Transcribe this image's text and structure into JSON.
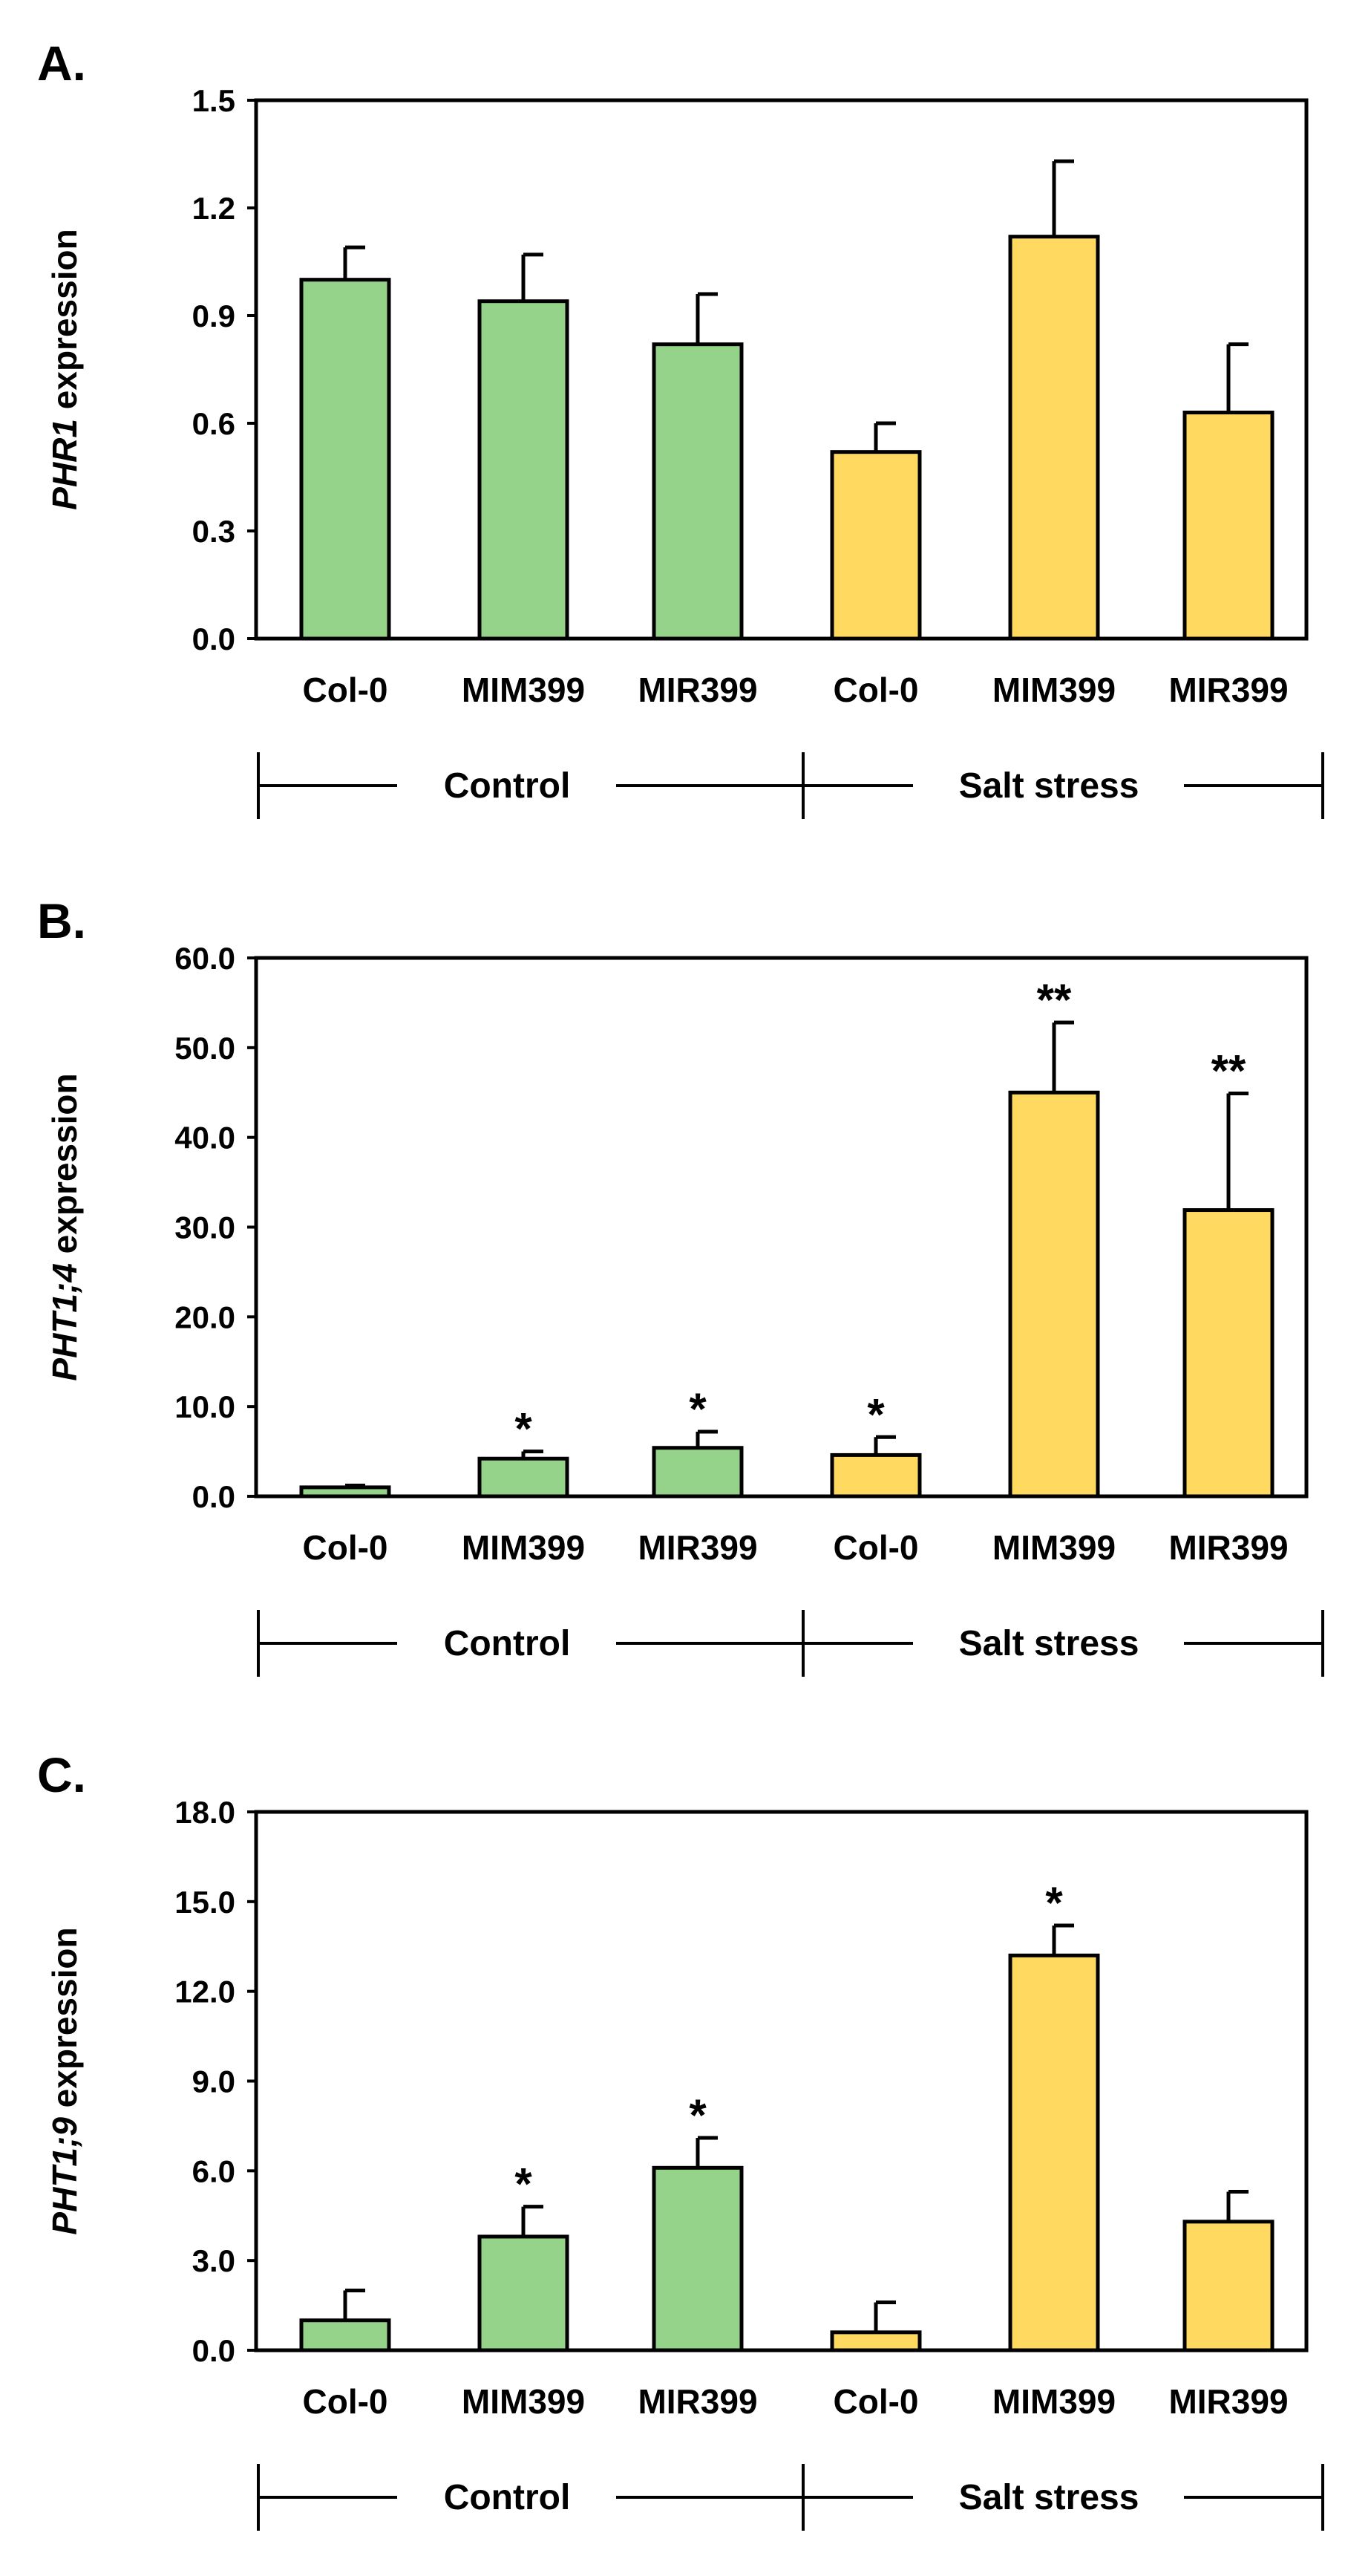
{
  "colors": {
    "control": "#94D389",
    "salt": "#FFD960",
    "ink": "#000000"
  },
  "chart_data": [
    {
      "panel": "A.",
      "type": "bar",
      "ylabel_italic": "PHR1",
      "ylabel_rest": " expression",
      "ylim": [
        0,
        1.5
      ],
      "yticks": [
        "0.0",
        "0.3",
        "0.6",
        "0.9",
        "1.2",
        "1.5"
      ],
      "categories": [
        "Col-0",
        "MIM399",
        "MIR399",
        "Col-0",
        "MIM399",
        "MIR399"
      ],
      "groups": [
        "Control",
        "Salt stress"
      ],
      "values": [
        1.0,
        0.94,
        0.82,
        0.52,
        1.12,
        0.63
      ],
      "errors": [
        0.09,
        0.13,
        0.14,
        0.08,
        0.21,
        0.19
      ],
      "significance": [
        "",
        "",
        "",
        "",
        "",
        ""
      ]
    },
    {
      "panel": "B.",
      "type": "bar",
      "ylabel_italic": "PHT1;4",
      "ylabel_rest": " expression",
      "ylim": [
        0,
        60
      ],
      "yticks": [
        "0.0",
        "10.0",
        "20.0",
        "30.0",
        "40.0",
        "50.0",
        "60.0"
      ],
      "categories": [
        "Col-0",
        "MIM399",
        "MIR399",
        "Col-0",
        "MIM399",
        "MIR399"
      ],
      "groups": [
        "Control",
        "Salt stress"
      ],
      "values": [
        1.0,
        4.2,
        5.4,
        4.6,
        45.0,
        31.9
      ],
      "errors": [
        0.2,
        0.8,
        1.8,
        2.0,
        7.8,
        13.0
      ],
      "significance": [
        "",
        "*",
        "*",
        "*",
        "**",
        "**"
      ]
    },
    {
      "panel": "C.",
      "type": "bar",
      "ylabel_italic": "PHT1;9",
      "ylabel_rest": " expression",
      "ylim": [
        0,
        18
      ],
      "yticks": [
        "0.0",
        "3.0",
        "6.0",
        "9.0",
        "12.0",
        "15.0",
        "18.0"
      ],
      "categories": [
        "Col-0",
        "MIM399",
        "MIR399",
        "Col-0",
        "MIM399",
        "MIR399"
      ],
      "groups": [
        "Control",
        "Salt stress"
      ],
      "values": [
        1.0,
        3.8,
        6.1,
        0.6,
        13.2,
        4.3
      ],
      "errors": [
        1.0,
        1.0,
        1.0,
        1.0,
        1.0,
        1.0
      ],
      "significance": [
        "",
        "*",
        "*",
        "",
        "*",
        ""
      ]
    }
  ]
}
